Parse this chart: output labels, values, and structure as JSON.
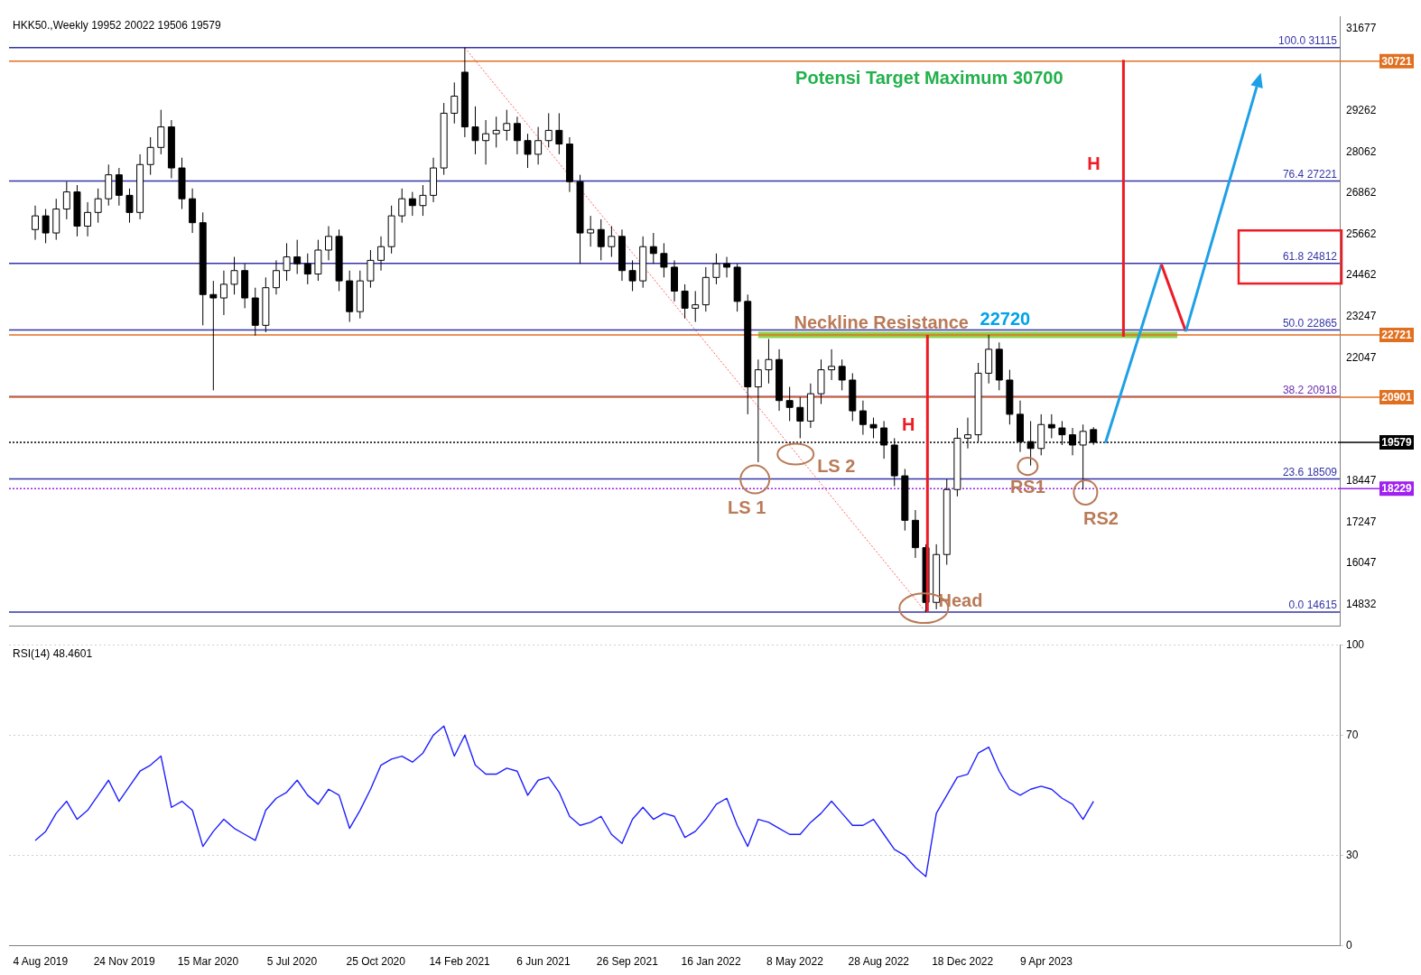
{
  "chart_data": [
    {
      "type": "candlestick",
      "title": "HKK50.,Weekly 19952 20022 19506 19579",
      "x": [
        "2019-07-28",
        "2019-08-11",
        "2019-08-25",
        "2019-09-08",
        "2019-09-22",
        "2019-10-06",
        "2019-10-20",
        "2019-11-03",
        "2019-11-17",
        "2019-12-01",
        "2019-12-15",
        "2019-12-29",
        "2020-01-12",
        "2020-01-26",
        "2020-02-09",
        "2020-02-23",
        "2020-03-08",
        "2020-03-22",
        "2020-04-05",
        "2020-04-19",
        "2020-05-03",
        "2020-05-17",
        "2020-05-31",
        "2020-06-14",
        "2020-06-28",
        "2020-07-12",
        "2020-07-26",
        "2020-08-09",
        "2020-08-23",
        "2020-09-06",
        "2020-09-20",
        "2020-10-04",
        "2020-10-18",
        "2020-11-01",
        "2020-11-15",
        "2020-11-29",
        "2020-12-13",
        "2020-12-27",
        "2021-01-10",
        "2021-01-24",
        "2021-02-07",
        "2021-02-21",
        "2021-03-07",
        "2021-03-21",
        "2021-04-04",
        "2021-04-18",
        "2021-05-02",
        "2021-05-16",
        "2021-05-30",
        "2021-06-13",
        "2021-06-27",
        "2021-07-11",
        "2021-07-25",
        "2021-08-08",
        "2021-08-22",
        "2021-09-05",
        "2021-09-19",
        "2021-10-03",
        "2021-10-17",
        "2021-10-31",
        "2021-11-14",
        "2021-11-28",
        "2021-12-12",
        "2021-12-26",
        "2022-01-09",
        "2022-01-23",
        "2022-02-06",
        "2022-02-20",
        "2022-03-06",
        "2022-03-20",
        "2022-04-03",
        "2022-04-17",
        "2022-05-01",
        "2022-05-15",
        "2022-05-29",
        "2022-06-12",
        "2022-06-26",
        "2022-07-10",
        "2022-07-24",
        "2022-08-07",
        "2022-08-21",
        "2022-09-04",
        "2022-09-18",
        "2022-10-02",
        "2022-10-16",
        "2022-10-30",
        "2022-11-13",
        "2022-11-27",
        "2022-12-11",
        "2022-12-25",
        "2023-01-08",
        "2023-01-22",
        "2023-02-05",
        "2023-02-19",
        "2023-03-05",
        "2023-03-19",
        "2023-04-02",
        "2023-04-16",
        "2023-04-30",
        "2023-05-14",
        "2023-05-28",
        "2023-06-11"
      ],
      "ohlc": [
        [
          25800,
          26500,
          25500,
          26200
        ],
        [
          26200,
          26400,
          25400,
          25700
        ],
        [
          25700,
          26700,
          25500,
          26400
        ],
        [
          26400,
          27200,
          26100,
          26900
        ],
        [
          26900,
          27100,
          25600,
          25900
        ],
        [
          25900,
          26600,
          25600,
          26300
        ],
        [
          26300,
          27000,
          26000,
          26700
        ],
        [
          26700,
          27700,
          26500,
          27400
        ],
        [
          27400,
          27600,
          26500,
          26800
        ],
        [
          26800,
          27000,
          26000,
          26300
        ],
        [
          26300,
          28000,
          26100,
          27700
        ],
        [
          27700,
          28500,
          27400,
          28200
        ],
        [
          28200,
          29300,
          28000,
          28800
        ],
        [
          28800,
          29000,
          27300,
          27600
        ],
        [
          27600,
          27900,
          26400,
          26700
        ],
        [
          26700,
          27000,
          25700,
          26000
        ],
        [
          26000,
          26300,
          23000,
          23900
        ],
        [
          23900,
          24300,
          21100,
          23800
        ],
        [
          23800,
          24600,
          23300,
          24200
        ],
        [
          24200,
          25000,
          23900,
          24600
        ],
        [
          24600,
          24800,
          23500,
          23800
        ],
        [
          23800,
          24100,
          22700,
          23000
        ],
        [
          23000,
          24400,
          22800,
          24100
        ],
        [
          24100,
          24900,
          23900,
          24600
        ],
        [
          24600,
          25400,
          24300,
          25000
        ],
        [
          25000,
          25500,
          24500,
          24800
        ],
        [
          24800,
          25100,
          24200,
          24500
        ],
        [
          24500,
          25500,
          24300,
          25200
        ],
        [
          25200,
          25900,
          24900,
          25600
        ],
        [
          25600,
          25800,
          24000,
          24300
        ],
        [
          24300,
          24600,
          23100,
          23400
        ],
        [
          23400,
          24600,
          23200,
          24300
        ],
        [
          24300,
          25200,
          24100,
          24900
        ],
        [
          24900,
          25600,
          24600,
          25300
        ],
        [
          25300,
          26500,
          25100,
          26200
        ],
        [
          26200,
          27000,
          26000,
          26700
        ],
        [
          26700,
          26900,
          26200,
          26500
        ],
        [
          26500,
          27100,
          26200,
          26800
        ],
        [
          26800,
          27900,
          26600,
          27600
        ],
        [
          27600,
          29500,
          27400,
          29200
        ],
        [
          29200,
          30100,
          28900,
          29700
        ],
        [
          30400,
          31115,
          28500,
          28800
        ],
        [
          28800,
          29400,
          28000,
          28400
        ],
        [
          28400,
          29000,
          27700,
          28600
        ],
        [
          28600,
          29100,
          28200,
          28700
        ],
        [
          28700,
          29300,
          28400,
          28900
        ],
        [
          28900,
          29100,
          28000,
          28400
        ],
        [
          28400,
          28600,
          27600,
          28000
        ],
        [
          28000,
          28800,
          27700,
          28400
        ],
        [
          28400,
          29200,
          28200,
          28700
        ],
        [
          28700,
          29200,
          28000,
          28300
        ],
        [
          28300,
          28500,
          26900,
          27200
        ],
        [
          27200,
          27400,
          24800,
          25700
        ],
        [
          25700,
          26200,
          25300,
          25800
        ],
        [
          25800,
          26100,
          24900,
          25300
        ],
        [
          25300,
          25900,
          25000,
          25600
        ],
        [
          25600,
          25800,
          24300,
          24600
        ],
        [
          24600,
          24900,
          24000,
          24300
        ],
        [
          24300,
          25600,
          24100,
          25300
        ],
        [
          25300,
          25700,
          24800,
          25100
        ],
        [
          25100,
          25400,
          24400,
          24700
        ],
        [
          24700,
          24900,
          23700,
          24000
        ],
        [
          24000,
          24200,
          23200,
          23500
        ],
        [
          23500,
          24000,
          23100,
          23600
        ],
        [
          23600,
          24700,
          23400,
          24400
        ],
        [
          24400,
          25100,
          24200,
          24800
        ],
        [
          24800,
          25000,
          24400,
          24700
        ],
        [
          24700,
          24800,
          23400,
          23700
        ],
        [
          23700,
          23900,
          20400,
          21200
        ],
        [
          21200,
          22000,
          19000,
          21700
        ],
        [
          21700,
          22600,
          21300,
          22000
        ],
        [
          22000,
          22300,
          20500,
          20800
        ],
        [
          20800,
          21200,
          20200,
          20600
        ],
        [
          20600,
          20900,
          19700,
          20200
        ],
        [
          20200,
          21300,
          20000,
          21000
        ],
        [
          21000,
          22000,
          20700,
          21700
        ],
        [
          21700,
          22300,
          21400,
          21800
        ],
        [
          21800,
          22000,
          21100,
          21400
        ],
        [
          21400,
          21600,
          20200,
          20500
        ],
        [
          20500,
          20800,
          19800,
          20100
        ],
        [
          20100,
          20300,
          19700,
          20000
        ],
        [
          20000,
          20200,
          19100,
          19500
        ],
        [
          19500,
          19700,
          18300,
          18600
        ],
        [
          18600,
          18800,
          17000,
          17300
        ],
        [
          17300,
          17600,
          16200,
          16500
        ],
        [
          16500,
          16600,
          14615,
          14900
        ],
        [
          14900,
          16600,
          14700,
          16300
        ],
        [
          16300,
          18500,
          16000,
          18200
        ],
        [
          18200,
          20000,
          18000,
          19700
        ],
        [
          19700,
          20300,
          19400,
          19800
        ],
        [
          19800,
          21900,
          19600,
          21600
        ],
        [
          21600,
          22720,
          21300,
          22300
        ],
        [
          22300,
          22500,
          21100,
          21400
        ],
        [
          21400,
          21700,
          20100,
          20400
        ],
        [
          20400,
          20800,
          19300,
          19600
        ],
        [
          19600,
          20200,
          18900,
          19400
        ],
        [
          19400,
          20400,
          19200,
          20100
        ],
        [
          20100,
          20400,
          19700,
          20000
        ],
        [
          20000,
          20200,
          19500,
          19800
        ],
        [
          19800,
          20000,
          19200,
          19500
        ],
        [
          19500,
          20100,
          18200,
          19900
        ],
        [
          19952,
          20022,
          19506,
          19579
        ]
      ],
      "xlim": [
        "2019-06-23",
        "2024-05-05"
      ],
      "ylim": [
        14200,
        32030
      ],
      "series": [
        {
          "type": "line",
          "x": [
            "2021-02-21",
            "2022-10-30"
          ],
          "values": [
            31115,
            14615
          ],
          "color": "#ff6060",
          "line_style": "dotted"
        },
        {
          "type": "line",
          "x": [
            "2022-03-20",
            "2023-10-01"
          ],
          "values": [
            22720,
            22720
          ],
          "color": "#92d050"
        }
      ],
      "yticks": [
        31677,
        29262,
        28062,
        26862,
        25662,
        24462,
        23247,
        22047,
        18447,
        17247,
        16047,
        14832
      ],
      "tick_labels": "y",
      "ref_lines": [
        {
          "axis": "y",
          "value": 31115,
          "label": "100.0 31115",
          "color": "#3535a8"
        },
        {
          "axis": "y",
          "value": 27221,
          "label": "76.4 27221",
          "color": "#3535a8"
        },
        {
          "axis": "y",
          "value": 24812,
          "label": "61.8 24812",
          "color": "#3535a8"
        },
        {
          "axis": "y",
          "value": 22865,
          "label": "50.0 22865",
          "color": "#3535a8"
        },
        {
          "axis": "y",
          "value": 20918,
          "label": "38.2 20918",
          "color": "#6a2fb0"
        },
        {
          "axis": "y",
          "value": 18509,
          "label": "23.6 18509",
          "color": "#3535a8"
        },
        {
          "axis": "y",
          "value": 14615,
          "label": "0.0 14615",
          "color": "#3535a8"
        },
        {
          "axis": "y",
          "value": 30721,
          "label": "30721",
          "color": "#e07020"
        },
        {
          "axis": "y",
          "value": 22721,
          "label": "22721",
          "color": "#e07020"
        },
        {
          "axis": "y",
          "value": 20901,
          "label": "20901",
          "color": "#e07020"
        },
        {
          "axis": "y",
          "value": 19579,
          "label": "19579",
          "color": "#000000",
          "line_style": "dotted"
        },
        {
          "axis": "y",
          "value": 18229,
          "label": "18229",
          "color": "#a020f0",
          "line_style": "dotted"
        }
      ],
      "annotations": [
        "Potensi Target Maximum 30700",
        {
          "text": "Neckline Resistance",
          "x": "2022-04-20",
          "y": 22720
        },
        "22720",
        "H",
        "H",
        "LS 1",
        "LS 2",
        {
          "text": "Head",
          "x": "2022-10-30",
          "y": 14615
        },
        "RS1",
        "RS2"
      ]
    },
    {
      "type": "line",
      "title": "RSI(14) 48.4601",
      "x": [
        "2019-07-28",
        "2019-08-11",
        "2019-08-25",
        "2019-09-08",
        "2019-09-22",
        "2019-10-06",
        "2019-10-20",
        "2019-11-03",
        "2019-11-17",
        "2019-12-01",
        "2019-12-15",
        "2019-12-29",
        "2020-01-12",
        "2020-01-26",
        "2020-02-09",
        "2020-02-23",
        "2020-03-08",
        "2020-03-22",
        "2020-04-05",
        "2020-04-19",
        "2020-05-03",
        "2020-05-17",
        "2020-05-31",
        "2020-06-14",
        "2020-06-28",
        "2020-07-12",
        "2020-07-26",
        "2020-08-09",
        "2020-08-23",
        "2020-09-06",
        "2020-09-20",
        "2020-10-04",
        "2020-10-18",
        "2020-11-01",
        "2020-11-15",
        "2020-11-29",
        "2020-12-13",
        "2020-12-27",
        "2021-01-10",
        "2021-01-24",
        "2021-02-07",
        "2021-02-21",
        "2021-03-07",
        "2021-03-21",
        "2021-04-04",
        "2021-04-18",
        "2021-05-02",
        "2021-05-16",
        "2021-05-30",
        "2021-06-13",
        "2021-06-27",
        "2021-07-11",
        "2021-07-25",
        "2021-08-08",
        "2021-08-22",
        "2021-09-05",
        "2021-09-19",
        "2021-10-03",
        "2021-10-17",
        "2021-10-31",
        "2021-11-14",
        "2021-11-28",
        "2021-12-12",
        "2021-12-26",
        "2022-01-09",
        "2022-01-23",
        "2022-02-06",
        "2022-02-20",
        "2022-03-06",
        "2022-03-20",
        "2022-04-03",
        "2022-04-17",
        "2022-05-01",
        "2022-05-15",
        "2022-05-29",
        "2022-06-12",
        "2022-06-26",
        "2022-07-10",
        "2022-07-24",
        "2022-08-07",
        "2022-08-21",
        "2022-09-04",
        "2022-09-18",
        "2022-10-02",
        "2022-10-16",
        "2022-10-30",
        "2022-11-13",
        "2022-11-27",
        "2022-12-11",
        "2022-12-25",
        "2023-01-08",
        "2023-01-22",
        "2023-02-05",
        "2023-02-19",
        "2023-03-05",
        "2023-03-19",
        "2023-04-02",
        "2023-04-16",
        "2023-04-30",
        "2023-05-14",
        "2023-05-28",
        "2023-06-11"
      ],
      "series": [
        {
          "color": "#1f1fff",
          "values": [
            35,
            38,
            44,
            48,
            42,
            45,
            50,
            55,
            48,
            53,
            58,
            60,
            63,
            46,
            48,
            45,
            33,
            38,
            42,
            39,
            37,
            35,
            45,
            49,
            51,
            55,
            50,
            47,
            52,
            50,
            39,
            45,
            52,
            60,
            62,
            63,
            61,
            64,
            70,
            73,
            63,
            70,
            60,
            57,
            57,
            59,
            58,
            50,
            55,
            56,
            51,
            43,
            40,
            41,
            43,
            37,
            34,
            42,
            46,
            42,
            44,
            43,
            36,
            38,
            42,
            47,
            49,
            40,
            33,
            42,
            41,
            39,
            37,
            37,
            41,
            44,
            48,
            44,
            40,
            40,
            42,
            37,
            32,
            30,
            26,
            23,
            44,
            50,
            56,
            57,
            64,
            66,
            58,
            52,
            50,
            52,
            53,
            52,
            49,
            47,
            42,
            48
          ]
        }
      ],
      "xlim": [
        "2019-06-23",
        "2024-05-05"
      ],
      "xticks": [
        {
          "value": "2019-08-04",
          "label": "4 Aug 2019"
        },
        {
          "value": "2019-11-24",
          "label": "24 Nov 2019"
        },
        {
          "value": "2020-03-15",
          "label": "15 Mar 2020"
        },
        {
          "value": "2020-07-05",
          "label": "5 Jul 2020"
        },
        {
          "value": "2020-10-25",
          "label": "25 Oct 2020"
        },
        {
          "value": "2021-02-14",
          "label": "14 Feb 2021"
        },
        {
          "value": "2021-06-06",
          "label": "6 Jun 2021"
        },
        {
          "value": "2021-09-26",
          "label": "26 Sep 2021"
        },
        {
          "value": "2022-01-16",
          "label": "16 Jan 2022"
        },
        {
          "value": "2022-05-08",
          "label": "8 May 2022"
        },
        {
          "value": "2022-08-28",
          "label": "28 Aug 2022"
        },
        {
          "value": "2022-12-18",
          "label": "18 Dec 2022"
        },
        {
          "value": "2023-04-09",
          "label": "9 Apr 2023"
        }
      ],
      "ylim": [
        0,
        100
      ],
      "yticks": [
        0,
        30,
        70,
        100
      ],
      "grid": "y"
    }
  ]
}
